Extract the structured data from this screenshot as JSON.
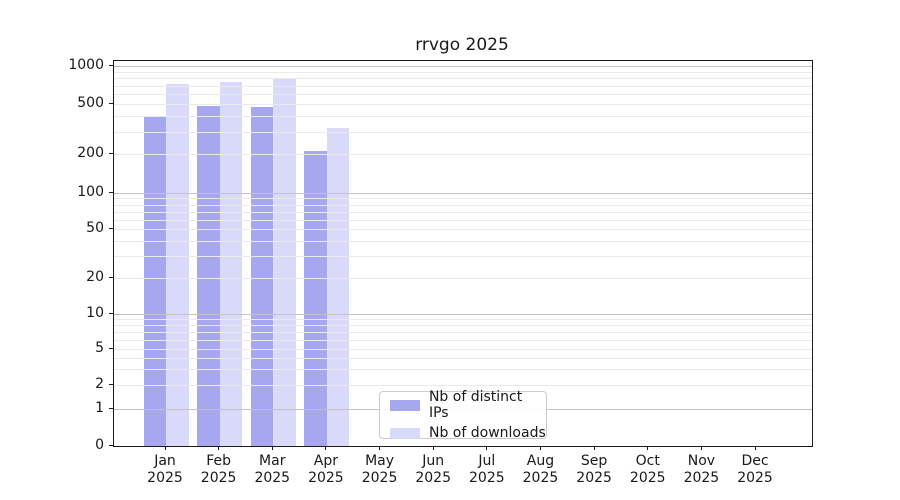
{
  "chart_data": {
    "type": "bar",
    "title": "rrvgo 2025",
    "yscale": "symlog",
    "ylim": [
      0,
      1000
    ],
    "grid": "horizontal log major+minor",
    "legend_position": "lower center inside axes",
    "ytick_labels": [
      "0",
      "1",
      "2",
      "5",
      "10",
      "20",
      "50",
      "100",
      "200",
      "500",
      "1000"
    ],
    "categories": [
      "Jan 2025",
      "Feb 2025",
      "Mar 2025",
      "Apr 2025",
      "May 2025",
      "Jun 2025",
      "Jul 2025",
      "Aug 2025",
      "Sep 2025",
      "Oct 2025",
      "Nov 2025",
      "Dec 2025"
    ],
    "series": [
      {
        "name": "Nb of distinct IPs",
        "key": "distinct-ips",
        "color": "#a7a7f0",
        "values": [
          400,
          485,
          470,
          210,
          null,
          null,
          null,
          null,
          null,
          null,
          null,
          null
        ]
      },
      {
        "name": "Nb of downloads",
        "key": "downloads",
        "color": "#d9d9f9",
        "values": [
          720,
          750,
          795,
          320,
          null,
          null,
          null,
          null,
          null,
          null,
          null,
          null
        ]
      }
    ]
  }
}
